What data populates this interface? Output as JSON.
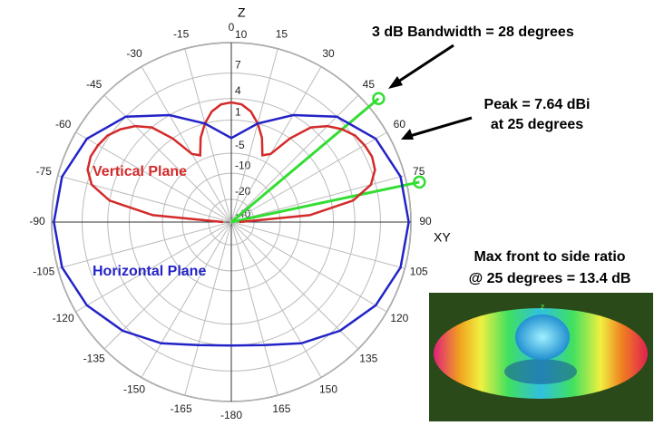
{
  "chart_data": {
    "type": "polar-line",
    "rlim": [
      -40,
      10
    ],
    "rticks": [
      10,
      7,
      4,
      1,
      -5,
      -10,
      -20,
      -40
    ],
    "angle_ticks": [
      0,
      15,
      30,
      45,
      60,
      75,
      90,
      105,
      120,
      135,
      150,
      165,
      -180,
      -165,
      -150,
      -135,
      -120,
      -105,
      -90,
      -75,
      -60,
      -45,
      -30,
      -15
    ],
    "axis_labels": {
      "zenith": "Z",
      "horizon": "XY"
    },
    "grid": true,
    "series": [
      {
        "name": "Vertical Plane",
        "color": "#d42a2a",
        "x": [
          -90,
          -85,
          -80,
          -75,
          -70,
          -65,
          -60,
          -55,
          -50,
          -45,
          -40,
          -35,
          -30,
          -25,
          -20,
          -15,
          -10,
          -5,
          0,
          5,
          10,
          15,
          20,
          25,
          30,
          35,
          40,
          45,
          50,
          55,
          60,
          65,
          70,
          75,
          80,
          85,
          90
        ],
        "values": [
          -30,
          -3,
          4,
          6.5,
          7.4,
          7.64,
          7.5,
          7.2,
          6.5,
          5.5,
          4,
          1,
          -3,
          -4,
          -1,
          1,
          2.5,
          3.3,
          3.5,
          3.3,
          2.5,
          1,
          -1,
          -4,
          -3,
          1,
          4,
          5.5,
          6.5,
          7.2,
          7.5,
          7.64,
          7.4,
          6.5,
          4,
          -3,
          -30
        ]
      },
      {
        "name": "Horizontal Plane",
        "color": "#2323c8",
        "x": [
          -180,
          -165,
          -150,
          -135,
          -120,
          -105,
          -90,
          -75,
          -60,
          -45,
          -30,
          -15,
          0,
          15,
          30,
          45,
          60,
          75,
          90,
          105,
          120,
          135,
          150,
          165,
          180
        ],
        "values": [
          4,
          4.5,
          6,
          7.5,
          8.8,
          9.6,
          9.8,
          9.6,
          8.8,
          7,
          4,
          1,
          -2,
          1,
          4,
          7,
          8.8,
          9.6,
          9.8,
          9.6,
          8.8,
          7.5,
          6,
          4.5,
          4
        ]
      }
    ],
    "bandwidth_angles": [
      50,
      78
    ],
    "annotations": [
      "3 dB Bandwidth = 28 degrees",
      "Peak = 7.64 dBi",
      "at 25 degrees",
      "Max front to side ratio",
      "@ 25 degrees = 13.4 dB"
    ]
  }
}
